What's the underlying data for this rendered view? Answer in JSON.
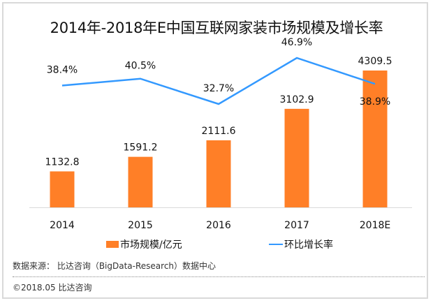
{
  "chart_data": {
    "type": "bar",
    "title": "2014年-2018年E中国互联网家装市场规模及增长率",
    "categories": [
      "2014",
      "2015",
      "2016",
      "2017",
      "2018E"
    ],
    "series": [
      {
        "name": "市场规模/亿元",
        "type": "bar",
        "axis": "left",
        "color": "#FF7F27",
        "values": [
          1132.8,
          1591.2,
          2111.6,
          3102.9,
          4309.5
        ],
        "labels": [
          "1132.8",
          "1591.2",
          "2111.6",
          "3102.9",
          "4309.5"
        ]
      },
      {
        "name": "环比增长率",
        "type": "line",
        "axis": "right",
        "color": "#3399FF",
        "values": [
          38.4,
          40.5,
          32.7,
          46.9,
          38.9
        ],
        "labels": [
          "38.4%",
          "40.5%",
          "32.7%",
          "46.9%",
          "38.9%"
        ]
      }
    ],
    "xlabel": "",
    "ylabel": "",
    "ylim_bar": [
      0,
      5000
    ],
    "ylim_line": [
      -20,
      55
    ],
    "grid": false,
    "legend_position": "bottom"
  },
  "footer": {
    "source": "数据来源： 比达咨询（BigData-Research）数据中心",
    "copyright": "©2018.05   比达咨询"
  },
  "colors": {
    "bar": "#FF7F27",
    "line": "#3399FF",
    "axis": "#d9d9d9",
    "border": "#d9d9d9"
  }
}
